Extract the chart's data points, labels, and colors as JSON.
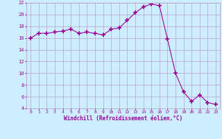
{
  "x": [
    0,
    1,
    2,
    3,
    4,
    5,
    6,
    7,
    8,
    9,
    10,
    11,
    12,
    13,
    14,
    15,
    16,
    17,
    18,
    19,
    20,
    21,
    22,
    23
  ],
  "y": [
    16.0,
    16.8,
    16.8,
    17.0,
    17.2,
    17.5,
    16.8,
    17.0,
    16.8,
    16.5,
    17.5,
    17.7,
    19.0,
    20.3,
    21.3,
    21.8,
    21.5,
    15.8,
    10.0,
    6.8,
    5.2,
    6.3,
    5.0,
    4.7
  ],
  "line_color": "#9b009b",
  "marker": "+",
  "marker_size": 4,
  "bg_color": "#cceeff",
  "grid_color": "#b8a0c8",
  "xlabel": "Windchill (Refroidissement éolien,°C)",
  "xlabel_color": "#9b009b",
  "tick_color": "#9b009b",
  "ylim": [
    4,
    22
  ],
  "xlim": [
    -0.5,
    23.5
  ],
  "yticks": [
    4,
    6,
    8,
    10,
    12,
    14,
    16,
    18,
    20,
    22
  ],
  "xticks": [
    0,
    1,
    2,
    3,
    4,
    5,
    6,
    7,
    8,
    9,
    10,
    11,
    12,
    13,
    14,
    15,
    16,
    17,
    18,
    19,
    20,
    21,
    22,
    23
  ]
}
